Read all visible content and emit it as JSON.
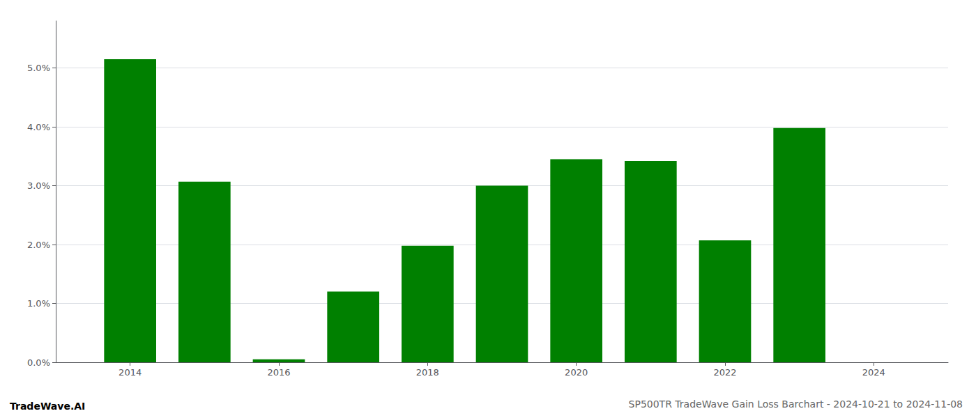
{
  "chart_data": {
    "type": "bar",
    "title": "SP500TR TradeWave Gain Loss Barchart - 2024-10-21 to 2024-11-08",
    "annotations": [
      {
        "text": "TradeWave.AI"
      }
    ],
    "x": [
      2014,
      2015,
      2016,
      2017,
      2018,
      2019,
      2020,
      2021,
      2022,
      2023
    ],
    "values": [
      0.0515,
      0.0307,
      0.0005,
      0.012,
      0.0198,
      0.03,
      0.0345,
      0.0342,
      0.0207,
      0.0398
    ],
    "color": "#008000",
    "xlim": [
      2013.0,
      2025.0
    ],
    "xticks": [
      2014,
      2016,
      2018,
      2020,
      2022,
      2024
    ],
    "ylim": [
      0,
      0.058
    ],
    "yticks": [
      {
        "value": 0.0,
        "label": "0.0%"
      },
      {
        "value": 0.01,
        "label": "1.0%"
      },
      {
        "value": 0.02,
        "label": "2.0%"
      },
      {
        "value": 0.03,
        "label": "3.0%"
      },
      {
        "value": 0.04,
        "label": "4.0%"
      },
      {
        "value": 0.05,
        "label": "5.0%"
      }
    ],
    "grid": true
  }
}
